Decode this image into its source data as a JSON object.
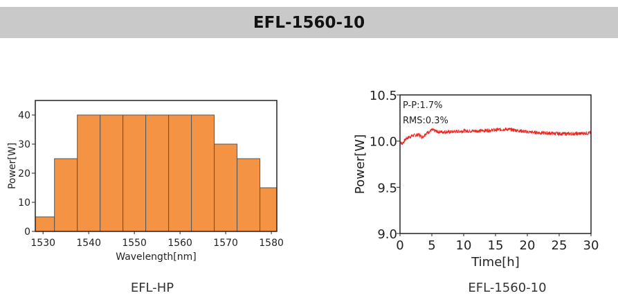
{
  "header": {
    "title": "EFL-1560-10"
  },
  "captions": [
    "EFL-HP",
    "EFL-1560-10"
  ],
  "chart_data": [
    {
      "type": "bar",
      "xlabel": "Wavelength[nm]",
      "ylabel": "Power[W]",
      "categories": [
        1530,
        1535,
        1540,
        1545,
        1550,
        1555,
        1560,
        1565,
        1570,
        1575,
        1580
      ],
      "values": [
        5,
        25,
        40,
        40,
        40,
        40,
        40,
        40,
        30,
        25,
        15
      ],
      "bin_width": 5,
      "xlim": [
        1528.3,
        1581.2
      ],
      "ylim": [
        0,
        45
      ],
      "xticks": [
        1530,
        1540,
        1550,
        1560,
        1570,
        1580
      ],
      "yticks": [
        0,
        10,
        20,
        30,
        40
      ],
      "bar_color": "#f39343"
    },
    {
      "type": "line",
      "xlabel": "Time[h]",
      "ylabel": "Power[W]",
      "xlim": [
        0,
        30
      ],
      "ylim": [
        9.0,
        10.5
      ],
      "xticks": [
        0,
        5,
        10,
        15,
        20,
        25,
        30
      ],
      "yticks": [
        "9.0",
        "9.5",
        "10.0",
        "10.5"
      ],
      "annotations": [
        "P-P:1.7%",
        "RMS:0.3%"
      ],
      "line_color": "#e8251f",
      "series": [
        {
          "name": "Power",
          "x": [
            0,
            0.3,
            1,
            2,
            3,
            3.5,
            4,
            5,
            6,
            8,
            10,
            12,
            15,
            16.5,
            18,
            20,
            22,
            25,
            28,
            30
          ],
          "y": [
            10.0,
            9.97,
            10.03,
            10.06,
            10.07,
            10.04,
            10.08,
            10.12,
            10.1,
            10.1,
            10.11,
            10.11,
            10.12,
            10.13,
            10.12,
            10.1,
            10.09,
            10.08,
            10.08,
            10.09
          ]
        }
      ],
      "noise_amplitude": 0.02
    }
  ]
}
